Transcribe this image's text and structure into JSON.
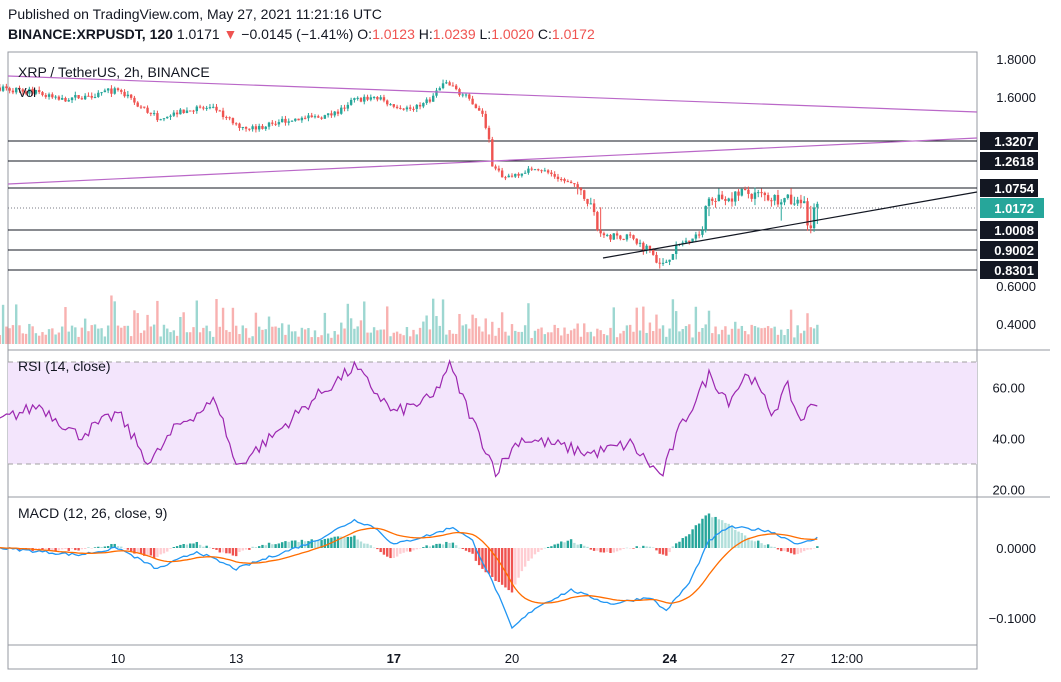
{
  "header": {
    "published": "Published on TradingView.com, May 27, 2021 11:21:16 UTC",
    "symbol": "BINANCE:XRPUSDT, 120",
    "last": "1.0171",
    "change_arrow": "▼",
    "change": "−0.0145 (−1.41%)",
    "o_label": "O:",
    "o_value": "1.0123",
    "h_label": "H:",
    "h_value": "1.0239",
    "l_label": "L:",
    "l_value": "1.0020",
    "c_label": "C:",
    "c_value": "1.0172"
  },
  "colors": {
    "up": "#26a69a",
    "down": "#ef5350",
    "rsi": "#9c27b0",
    "rsi_band": "#f3e5fc",
    "macd": "#2196f3",
    "signal": "#ff6d00",
    "trend_purple": "#ba68c8",
    "price_tag": "#26a69a"
  },
  "chart_data": [
    {
      "type": "candlestick",
      "title": "XRP / TetherUS, 2h, BINANCE",
      "legend": [
        "Vol"
      ],
      "x_ticks": [
        "10",
        "13",
        "17",
        "20",
        "24",
        "27",
        "12:00"
      ],
      "y_ticks": [
        "1.8000",
        "1.6000",
        "0.6000",
        "0.4000"
      ],
      "level_labels": [
        "1.3207",
        "1.2618",
        "1.0754",
        "1.0008",
        "0.9002",
        "0.8301"
      ],
      "price_label": "1.0172",
      "levels": [
        1.3207,
        1.2618,
        1.0754,
        1.0008,
        0.9002,
        0.8301
      ],
      "last_price": 1.0172,
      "x_days": [
        7,
        28.5
      ],
      "approx_close_keypoints": [
        [
          7.0,
          1.65
        ],
        [
          8.0,
          1.62
        ],
        [
          8.5,
          1.58
        ],
        [
          9.0,
          1.6
        ],
        [
          9.5,
          1.62
        ],
        [
          10.0,
          1.64
        ],
        [
          10.5,
          1.55
        ],
        [
          11.0,
          1.47
        ],
        [
          11.5,
          1.5
        ],
        [
          12.0,
          1.53
        ],
        [
          12.5,
          1.52
        ],
        [
          13.0,
          1.42
        ],
        [
          13.5,
          1.4
        ],
        [
          14.0,
          1.44
        ],
        [
          14.5,
          1.46
        ],
        [
          15.0,
          1.47
        ],
        [
          15.5,
          1.49
        ],
        [
          16.0,
          1.58
        ],
        [
          16.5,
          1.6
        ],
        [
          17.0,
          1.55
        ],
        [
          17.5,
          1.52
        ],
        [
          18.0,
          1.6
        ],
        [
          18.3,
          1.68
        ],
        [
          18.7,
          1.62
        ],
        [
          19.0,
          1.57
        ],
        [
          19.3,
          1.46
        ],
        [
          19.5,
          1.22
        ],
        [
          19.8,
          1.15
        ],
        [
          20.2,
          1.18
        ],
        [
          20.6,
          1.22
        ],
        [
          21.0,
          1.17
        ],
        [
          21.5,
          1.1
        ],
        [
          22.0,
          1.02
        ],
        [
          22.5,
          0.97
        ],
        [
          23.0,
          0.96
        ],
        [
          23.5,
          0.9
        ],
        [
          23.8,
          0.84
        ],
        [
          24.2,
          0.92
        ],
        [
          24.6,
          0.97
        ],
        [
          25.0,
          1.03
        ],
        [
          25.5,
          1.05
        ],
        [
          26.0,
          1.06
        ],
        [
          26.5,
          1.05
        ],
        [
          27.0,
          1.04
        ],
        [
          27.5,
          1.02
        ],
        [
          27.8,
          1.0172
        ]
      ]
    },
    {
      "type": "line",
      "title": "RSI (14, close)",
      "y_ticks": [
        "60.00",
        "40.00",
        "20.00"
      ],
      "band": [
        30,
        70
      ],
      "approx_keypoints": [
        [
          7.0,
          47
        ],
        [
          8.0,
          53
        ],
        [
          9.0,
          41
        ],
        [
          10.0,
          50
        ],
        [
          10.8,
          30
        ],
        [
          11.5,
          45
        ],
        [
          12.5,
          55
        ],
        [
          13.0,
          29
        ],
        [
          14.0,
          42
        ],
        [
          15.0,
          56
        ],
        [
          16.0,
          68
        ],
        [
          17.0,
          50
        ],
        [
          18.0,
          56
        ],
        [
          18.4,
          69
        ],
        [
          19.0,
          47
        ],
        [
          19.6,
          27
        ],
        [
          20.2,
          40
        ],
        [
          21.0,
          38
        ],
        [
          22.0,
          34
        ],
        [
          23.0,
          38
        ],
        [
          23.8,
          25
        ],
        [
          24.2,
          42
        ],
        [
          25.0,
          65
        ],
        [
          25.5,
          55
        ],
        [
          26.0,
          66
        ],
        [
          26.6,
          50
        ],
        [
          27.0,
          60
        ],
        [
          27.3,
          47
        ],
        [
          27.8,
          56
        ]
      ]
    },
    {
      "type": "line",
      "title": "MACD (12, 26, close, 9)",
      "y_ticks": [
        "0.0000",
        "−0.1000"
      ],
      "series": [
        {
          "name": "MACD"
        },
        {
          "name": "Signal"
        },
        {
          "name": "Histogram"
        }
      ],
      "approx_macd_keypoints": [
        [
          7.0,
          0.0
        ],
        [
          8.0,
          -0.005
        ],
        [
          9.0,
          -0.01
        ],
        [
          10.0,
          0.0
        ],
        [
          11.0,
          -0.03
        ],
        [
          12.0,
          -0.005
        ],
        [
          13.0,
          -0.03
        ],
        [
          14.0,
          -0.01
        ],
        [
          15.0,
          0.01
        ],
        [
          16.0,
          0.04
        ],
        [
          16.5,
          0.03
        ],
        [
          17.0,
          0.005
        ],
        [
          18.0,
          0.02
        ],
        [
          18.5,
          0.03
        ],
        [
          19.0,
          0.01
        ],
        [
          19.6,
          -0.06
        ],
        [
          20.0,
          -0.115
        ],
        [
          20.6,
          -0.085
        ],
        [
          21.5,
          -0.06
        ],
        [
          22.5,
          -0.08
        ],
        [
          23.5,
          -0.07
        ],
        [
          23.9,
          -0.09
        ],
        [
          24.5,
          -0.05
        ],
        [
          25.0,
          0.01
        ],
        [
          25.5,
          0.03
        ],
        [
          26.5,
          0.025
        ],
        [
          27.3,
          0.005
        ],
        [
          27.8,
          0.015
        ]
      ]
    }
  ]
}
